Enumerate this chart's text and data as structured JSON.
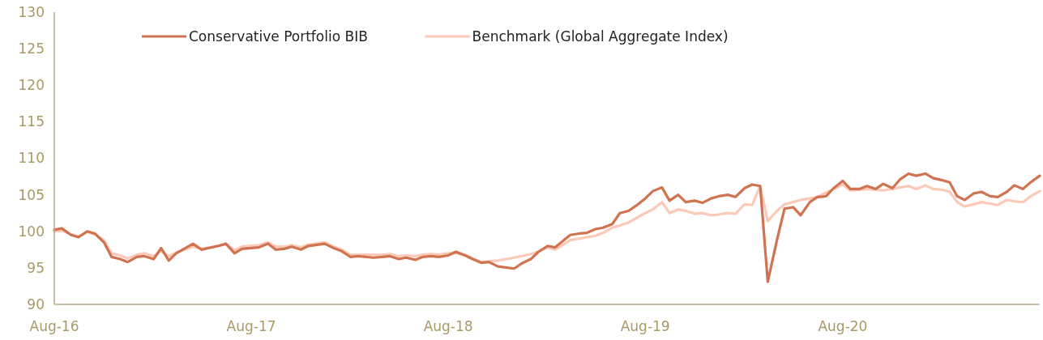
{
  "chart_data": {
    "type": "line",
    "x": [
      "2016-08-01",
      "2016-08-15",
      "2016-09-01",
      "2016-09-15",
      "2016-10-01",
      "2016-10-15",
      "2016-11-01",
      "2016-11-15",
      "2016-12-01",
      "2016-12-15",
      "2017-01-01",
      "2017-01-15",
      "2017-02-01",
      "2017-02-15",
      "2017-03-01",
      "2017-03-15",
      "2017-04-15",
      "2017-05-01",
      "2017-06-01",
      "2017-06-15",
      "2017-07-01",
      "2017-07-15",
      "2017-08-15",
      "2017-09-01",
      "2017-09-15",
      "2017-10-01",
      "2017-10-15",
      "2017-11-01",
      "2017-11-15",
      "2017-12-15",
      "2018-01-01",
      "2018-01-15",
      "2018-02-01",
      "2018-02-15",
      "2018-03-15",
      "2018-04-01",
      "2018-04-15",
      "2018-05-01",
      "2018-05-15",
      "2018-06-01",
      "2018-06-15",
      "2018-07-01",
      "2018-07-15",
      "2018-08-01",
      "2018-08-15",
      "2018-09-01",
      "2018-09-15",
      "2018-10-01",
      "2018-10-15",
      "2018-11-01",
      "2018-12-01",
      "2018-12-15",
      "2019-01-01",
      "2019-01-15",
      "2019-02-01",
      "2019-02-15",
      "2019-03-15",
      "2019-04-01",
      "2019-04-15",
      "2019-05-01",
      "2019-05-15",
      "2019-06-01",
      "2019-06-15",
      "2019-07-01",
      "2019-07-15",
      "2019-08-01",
      "2019-08-15",
      "2019-09-01",
      "2019-09-15",
      "2019-10-01",
      "2019-10-15",
      "2019-11-01",
      "2019-11-15",
      "2019-12-01",
      "2019-12-15",
      "2020-01-01",
      "2020-01-15",
      "2020-02-01",
      "2020-02-15",
      "2020-03-01",
      "2020-03-15",
      "2020-04-01",
      "2020-04-15",
      "2020-05-01",
      "2020-05-15",
      "2020-06-01",
      "2020-06-15",
      "2020-07-01",
      "2020-07-15",
      "2020-08-01",
      "2020-08-15",
      "2020-09-01",
      "2020-09-15",
      "2020-10-01",
      "2020-10-15",
      "2020-11-01",
      "2020-11-15",
      "2020-12-01",
      "2020-12-15",
      "2021-01-01",
      "2021-01-15",
      "2021-02-01",
      "2021-02-15",
      "2021-03-01",
      "2021-03-15",
      "2021-04-01",
      "2021-04-15",
      "2021-05-01",
      "2021-05-15",
      "2021-06-01",
      "2021-06-15",
      "2021-07-01",
      "2021-07-15",
      "2021-08-01"
    ],
    "series": [
      {
        "name": "Conservative Portfolio BIB",
        "color": "#d07350",
        "values": [
          100.2,
          100.4,
          99.5,
          99.2,
          100.0,
          99.7,
          98.5,
          96.5,
          96.2,
          95.8,
          96.5,
          96.6,
          96.2,
          97.7,
          96.0,
          97.0,
          98.3,
          97.5,
          98.0,
          98.3,
          97.0,
          97.6,
          97.8,
          98.3,
          97.5,
          97.6,
          97.9,
          97.5,
          98.0,
          98.3,
          97.7,
          97.3,
          96.5,
          96.6,
          96.4,
          96.5,
          96.6,
          96.2,
          96.4,
          96.1,
          96.5,
          96.6,
          96.5,
          96.7,
          97.2,
          96.7,
          96.2,
          95.7,
          95.8,
          95.2,
          94.9,
          95.6,
          96.2,
          97.2,
          98.0,
          97.8,
          99.5,
          99.7,
          99.8,
          100.3,
          100.5,
          101.0,
          102.5,
          102.8,
          103.5,
          104.5,
          105.5,
          106.0,
          104.2,
          105.0,
          104.0,
          104.2,
          103.9,
          104.5,
          104.8,
          105.0,
          104.7,
          105.9,
          106.4,
          106.2,
          93.1,
          98.8,
          103.1,
          103.3,
          102.2,
          104.0,
          104.7,
          104.8,
          105.9,
          106.9,
          105.8,
          105.8,
          106.2,
          105.8,
          106.5,
          105.9,
          107.1,
          107.9,
          107.6,
          107.9,
          107.3,
          107.0,
          106.7,
          104.8,
          104.3,
          105.2,
          105.4,
          104.8,
          104.7,
          105.4,
          106.3,
          105.8,
          106.7,
          107.6
        ]
      },
      {
        "name": "Benchmark (Global Aggregate Index)",
        "color": "#fcc9b9",
        "values": [
          100.0,
          100.1,
          99.6,
          99.3,
          99.9,
          99.6,
          98.8,
          97.0,
          96.7,
          96.3,
          96.8,
          97.0,
          96.6,
          97.3,
          96.6,
          97.1,
          97.9,
          97.6,
          98.0,
          98.3,
          97.4,
          97.9,
          98.1,
          98.5,
          97.9,
          97.9,
          98.1,
          97.8,
          98.2,
          98.5,
          97.9,
          97.5,
          96.8,
          96.8,
          96.8,
          96.8,
          96.9,
          96.6,
          96.7,
          96.6,
          96.8,
          96.9,
          96.8,
          97.0,
          97.0,
          96.8,
          96.3,
          95.8,
          95.9,
          96.0,
          96.4,
          96.6,
          96.9,
          97.2,
          97.8,
          97.5,
          98.8,
          99.0,
          99.2,
          99.4,
          99.8,
          100.5,
          100.8,
          101.2,
          101.8,
          102.5,
          103.0,
          104.0,
          102.5,
          103.0,
          102.8,
          102.4,
          102.5,
          102.2,
          102.3,
          102.5,
          102.4,
          103.7,
          103.6,
          106.2,
          101.4,
          102.8,
          103.7,
          104.0,
          104.3,
          104.5,
          104.7,
          105.3,
          105.8,
          106.4,
          105.6,
          105.7,
          105.8,
          105.7,
          105.6,
          105.8,
          106.0,
          106.2,
          105.8,
          106.3,
          105.8,
          105.7,
          105.4,
          104.0,
          103.4,
          103.7,
          104.0,
          103.8,
          103.6,
          104.3,
          104.1,
          104.0,
          104.8,
          105.5
        ]
      }
    ],
    "xlim": [
      "2016-08-01",
      "2021-08-01"
    ],
    "xticks": [
      {
        "value": "2016-08-01",
        "label": "Aug-16"
      },
      {
        "value": "2017-08-01",
        "label": "Aug-17"
      },
      {
        "value": "2018-08-01",
        "label": "Aug-18"
      },
      {
        "value": "2019-08-01",
        "label": "Aug-19"
      },
      {
        "value": "2020-08-01",
        "label": "Aug-20"
      }
    ],
    "ylim": [
      90,
      130
    ],
    "yticks": [
      90,
      95,
      100,
      105,
      110,
      115,
      120,
      125,
      130
    ],
    "legend": "top",
    "marker": "none",
    "line_style": "solid"
  }
}
